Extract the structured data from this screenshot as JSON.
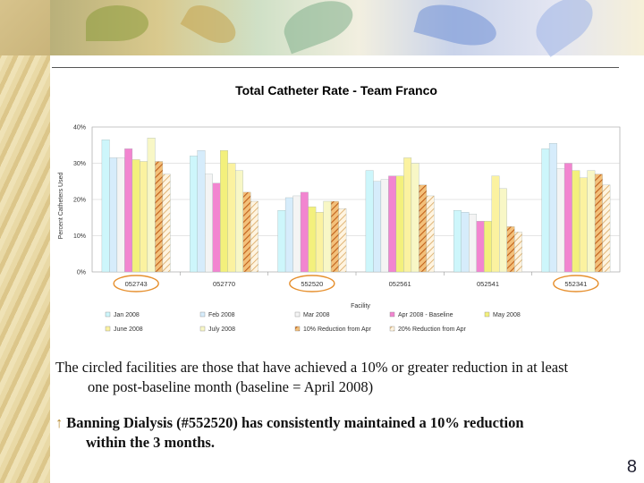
{
  "slide": {
    "caption_line1": "The circled facilities are those that have achieved a 10% or greater reduction in at least",
    "caption_line2": "one post-baseline month (baseline = April 2008)",
    "bullet_glyph": "↑",
    "bullet_line1": "Banning Dialysis (#552520) has consistently maintained a 10% reduction",
    "bullet_line2": "within the 3 months.",
    "page_number": "8"
  },
  "chart_data": {
    "type": "bar",
    "title": "Total Catheter Rate - Team Franco",
    "xlabel": "Facility",
    "ylabel": "Percent Catheters Used",
    "ylim": [
      0,
      40
    ],
    "yticks": [
      "0%",
      "10%",
      "20%",
      "30%",
      "40%"
    ],
    "categories": [
      "052743",
      "052770",
      "552520",
      "052561",
      "052541",
      "552341"
    ],
    "circled": [
      "052743",
      "552520",
      "552341"
    ],
    "grid": true,
    "legend_position": "bottom",
    "series": [
      {
        "name": "Jan 2008",
        "color": "#cdf6fb",
        "pattern": "solid",
        "values": [
          36.5,
          32,
          17,
          28,
          17,
          34
        ]
      },
      {
        "name": "Feb 2008",
        "color": "#d6ecfb",
        "pattern": "solid",
        "values": [
          31.5,
          33.5,
          20.5,
          25,
          16.5,
          35.5
        ]
      },
      {
        "name": "Mar 2008",
        "color": "#f4f4f4",
        "pattern": "solid",
        "values": [
          31.5,
          27,
          21,
          25.5,
          16,
          28.5
        ]
      },
      {
        "name": "Apr 2008 - Baseline",
        "color": "#f285d0",
        "pattern": "solid",
        "values": [
          34,
          24.5,
          22,
          26.5,
          14,
          30
        ]
      },
      {
        "name": "May 2008",
        "color": "#f3f07c",
        "pattern": "solid",
        "values": [
          31,
          33.5,
          18,
          26.5,
          14,
          28
        ]
      },
      {
        "name": "June 2008",
        "color": "#fbf2a0",
        "pattern": "solid",
        "values": [
          30.5,
          30,
          16.5,
          31.5,
          26.5,
          26
        ]
      },
      {
        "name": "July 2008",
        "color": "#f8f7c6",
        "pattern": "solid",
        "values": [
          37,
          28,
          19.5,
          30,
          23,
          28
        ]
      },
      {
        "name": "10% Reduction from Apr",
        "color": "#e0933a",
        "pattern": "hatch",
        "values": [
          30.5,
          22,
          19.5,
          24,
          12.5,
          27
        ]
      },
      {
        "name": "20% Reduction from Apr",
        "color": "#e8c38a",
        "pattern": "hatch-light",
        "values": [
          27,
          19.5,
          17.5,
          21,
          11,
          24
        ]
      }
    ]
  }
}
